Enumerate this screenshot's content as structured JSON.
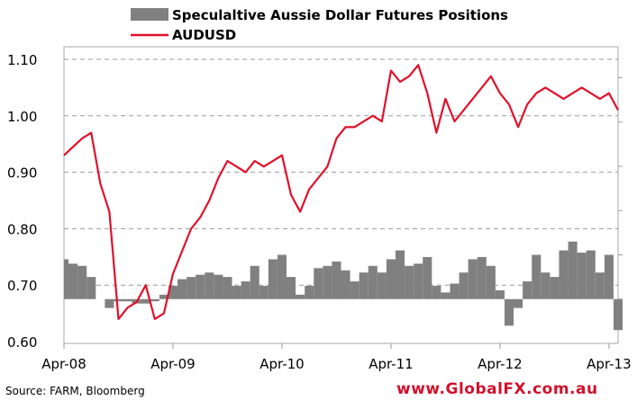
{
  "chart_data": {
    "type": "line+bar",
    "title": "",
    "legend": [
      {
        "label": "Speculaltive Aussie Dollar Futures Positions",
        "color": "#808080",
        "kind": "bar"
      },
      {
        "label": "AUDUSD",
        "color": "#e0112b",
        "kind": "line"
      }
    ],
    "legend_placement": "top-center",
    "x_tick_labels": [
      "Apr-08",
      "Apr-09",
      "Apr-10",
      "Apr-11",
      "Apr-12",
      "Apr-13"
    ],
    "x_months_from_apr08": [
      0,
      1,
      2,
      3,
      4,
      5,
      6,
      7,
      8,
      9,
      10,
      11,
      12,
      13,
      14,
      15,
      16,
      17,
      18,
      19,
      20,
      21,
      22,
      23,
      24,
      25,
      26,
      27,
      28,
      29,
      30,
      31,
      32,
      33,
      34,
      35,
      36,
      37,
      38,
      39,
      40,
      41,
      42,
      43,
      44,
      45,
      46,
      47,
      48,
      49,
      50,
      51,
      52,
      53,
      54,
      55,
      56,
      57,
      58,
      59,
      60,
      61
    ],
    "y_left": {
      "ticks": [
        "0.60",
        "0.70",
        "0.80",
        "0.90",
        "1.00",
        "1.10"
      ],
      "range": [
        0.6,
        1.1
      ],
      "grid": "dashed"
    },
    "y_right": {
      "labels": "none",
      "range": [
        -1,
        5.7
      ]
    },
    "series": [
      {
        "name": "AUDUSD",
        "axis": "left",
        "values": [
          0.93,
          0.945,
          0.96,
          0.97,
          0.88,
          0.83,
          0.64,
          0.66,
          0.67,
          0.7,
          0.64,
          0.65,
          0.72,
          0.76,
          0.8,
          0.82,
          0.85,
          0.89,
          0.92,
          0.91,
          0.9,
          0.92,
          0.91,
          0.92,
          0.93,
          0.86,
          0.83,
          0.87,
          0.89,
          0.91,
          0.96,
          0.98,
          0.98,
          0.99,
          1.0,
          0.99,
          1.08,
          1.06,
          1.07,
          1.09,
          1.04,
          0.97,
          1.03,
          0.99,
          1.01,
          1.03,
          1.05,
          1.07,
          1.04,
          1.02,
          0.98,
          1.02,
          1.04,
          1.05,
          1.04,
          1.03,
          1.04,
          1.05,
          1.04,
          1.03,
          1.04,
          1.01
        ]
      },
      {
        "name": "Speculaltive Aussie Dollar Futures Positions",
        "axis": "right",
        "values": [
          0.9,
          0.8,
          0.75,
          0.5,
          0,
          -0.2,
          -0.05,
          -0.05,
          -0.1,
          -0.1,
          -0.05,
          0.1,
          0.3,
          0.45,
          0.5,
          0.55,
          0.6,
          0.55,
          0.5,
          0.3,
          0.4,
          0.75,
          0.3,
          0.9,
          1.0,
          0.5,
          0.1,
          0.3,
          0.7,
          0.75,
          0.85,
          0.65,
          0.4,
          0.6,
          0.75,
          0.6,
          0.9,
          1.1,
          0.75,
          0.8,
          0.95,
          0.3,
          0.15,
          0.35,
          0.6,
          0.9,
          0.95,
          0.75,
          0.2,
          -0.6,
          -0.2,
          0.4,
          1.0,
          0.6,
          0.5,
          1.1,
          1.3,
          1.05,
          1.1,
          0.6,
          1.0,
          -0.7
        ]
      }
    ]
  },
  "footer": {
    "source": "Source: FARM, Bloomberg",
    "website": "www.GlobalFX.com.au"
  }
}
